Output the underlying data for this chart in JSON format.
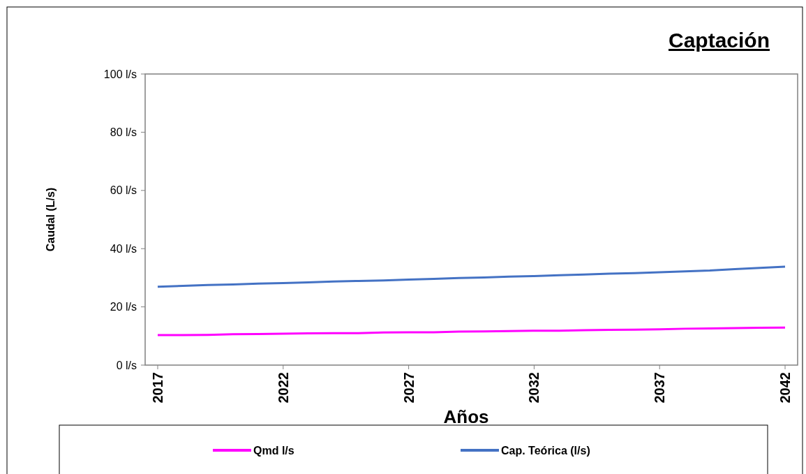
{
  "chart_data": {
    "type": "line",
    "title": "Captación",
    "xlabel": "Años",
    "ylabel": "Caudal  (L/s)",
    "x": [
      2017,
      2018,
      2019,
      2020,
      2021,
      2022,
      2023,
      2024,
      2025,
      2026,
      2027,
      2028,
      2029,
      2030,
      2031,
      2032,
      2033,
      2034,
      2035,
      2036,
      2037,
      2038,
      2039,
      2040,
      2041,
      2042
    ],
    "xlim": [
      2016.5,
      2042.5
    ],
    "xticks": [
      2017,
      2022,
      2027,
      2032,
      2037,
      2042
    ],
    "ylim": [
      0,
      100
    ],
    "yticks": [
      {
        "value": 0,
        "label": "0 l/s"
      },
      {
        "value": 20,
        "label": "20 l/s"
      },
      {
        "value": 40,
        "label": "40 l/s"
      },
      {
        "value": 60,
        "label": "60 l/s"
      },
      {
        "value": 80,
        "label": "80 l/s"
      },
      {
        "value": 100,
        "label": "100 l/s"
      }
    ],
    "series": [
      {
        "name": "Qmd l/s",
        "color": "#ff00ff",
        "values": [
          10.3,
          10.3,
          10.4,
          10.6,
          10.7,
          10.8,
          10.9,
          11.0,
          11.0,
          11.2,
          11.3,
          11.3,
          11.5,
          11.6,
          11.7,
          11.8,
          11.8,
          12.0,
          12.1,
          12.2,
          12.3,
          12.5,
          12.6,
          12.7,
          12.8,
          12.9
        ]
      },
      {
        "name": "Cap. Teórica (l/s)",
        "color": "#4472c4",
        "values": [
          26.9,
          27.2,
          27.5,
          27.7,
          28.0,
          28.2,
          28.4,
          28.7,
          28.9,
          29.1,
          29.4,
          29.6,
          29.9,
          30.1,
          30.4,
          30.6,
          30.9,
          31.1,
          31.4,
          31.6,
          31.9,
          32.2,
          32.5,
          33.0,
          33.4,
          33.8
        ]
      }
    ],
    "grid": false,
    "legend": "bottom",
    "marker": "none",
    "line_style": "solid"
  }
}
